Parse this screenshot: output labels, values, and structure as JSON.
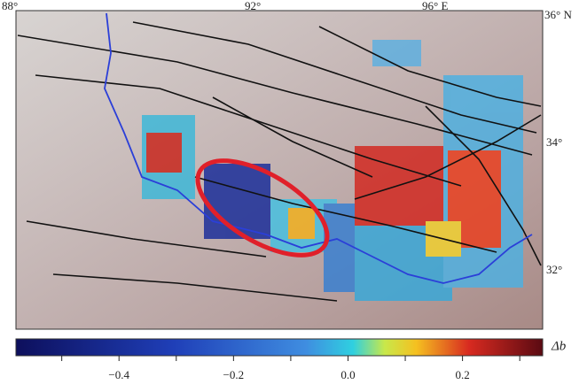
{
  "map": {
    "longitude_labels": [
      "88°",
      "92°",
      "96° E"
    ],
    "latitude_labels": [
      "36° N",
      "34°",
      "32°"
    ]
  },
  "colorbar": {
    "label": "Δb",
    "range": [
      -0.58,
      0.34
    ],
    "ticks": [
      {
        "value": -0.4,
        "label": "−0.4"
      },
      {
        "value": -0.2,
        "label": "−0.2"
      },
      {
        "value": 0,
        "label": "0.0"
      },
      0.2
    ],
    "minor_ticks": [
      -0.5,
      -0.3,
      -0.1,
      0.1,
      0.3
    ]
  }
}
